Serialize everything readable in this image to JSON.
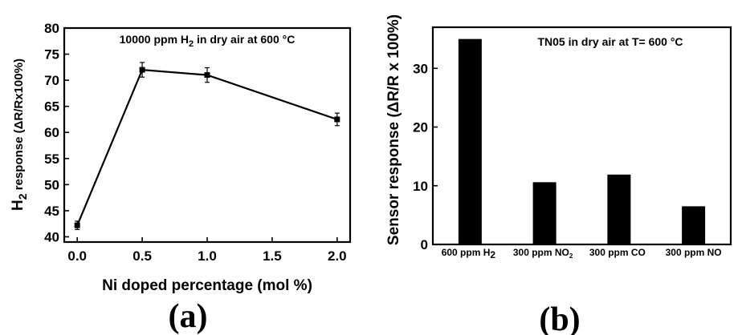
{
  "chart_data": [
    {
      "type": "line",
      "panel_label": "(a)",
      "annotation": {
        "pre": "10000 ppm H",
        "sub": "2",
        "post": " in dry air at 600 °C"
      },
      "xlabel": "Ni doped percentage (mol %)",
      "ylabel": {
        "pre": "H",
        "sub": "2",
        "post": " response (ΔR/Rx100%)"
      },
      "xlim": [
        -0.1,
        2.1
      ],
      "ylim": [
        39,
        80
      ],
      "xticks": [
        0.0,
        0.5,
        1.0,
        1.5,
        2.0
      ],
      "xtick_labels": [
        "0.0",
        "0.5",
        "1.0",
        "1.5",
        "2.0"
      ],
      "yticks": [
        40,
        45,
        50,
        55,
        60,
        65,
        70,
        75,
        80
      ],
      "ytick_labels": [
        "40",
        "45",
        "50",
        "55",
        "60",
        "65",
        "70",
        "75",
        "80"
      ],
      "x": [
        0.0,
        0.5,
        1.0,
        2.0
      ],
      "y": [
        42.2,
        72.0,
        71.0,
        62.5
      ],
      "yerr": [
        0.8,
        1.4,
        1.4,
        1.2
      ],
      "marker": "square",
      "grid": false
    },
    {
      "type": "bar",
      "panel_label": "(b)",
      "annotation": "TN05 in dry air at T= 600 °C",
      "ylabel": "Sensor response (ΔR/R x 100%)",
      "xlabel": "",
      "ylim": [
        0,
        37
      ],
      "yticks": [
        0,
        10,
        20,
        30
      ],
      "ytick_labels": [
        "0",
        "10",
        "20",
        "30"
      ],
      "categories": [
        {
          "pre": "600 ppm H",
          "sub": "2"
        },
        {
          "pre": "300 ppm NO",
          "sub": "2"
        },
        {
          "pre": "300 ppm CO",
          "sub": ""
        },
        {
          "pre": "300 ppm NO",
          "sub": ""
        }
      ],
      "values": [
        35.0,
        10.6,
        11.9,
        6.5
      ],
      "bar_color": "#000000",
      "grid": false
    }
  ]
}
